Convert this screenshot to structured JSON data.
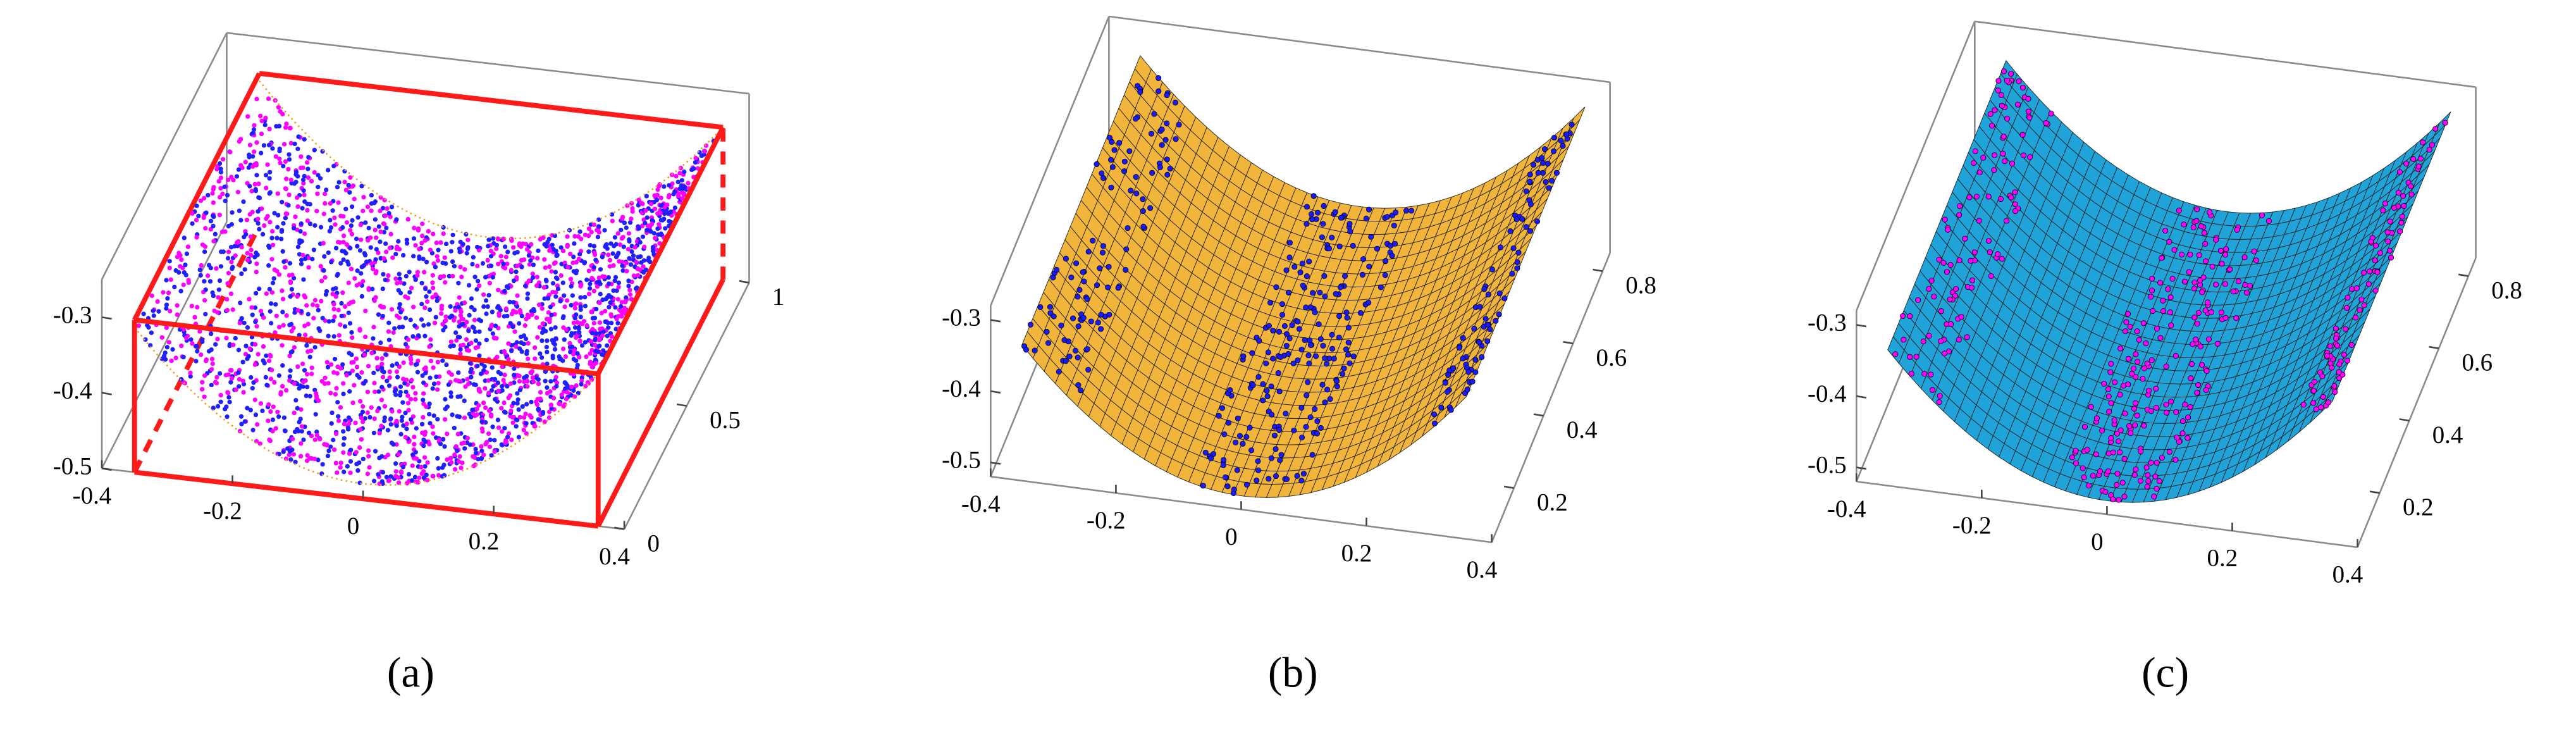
{
  "chart_data": [
    {
      "type": "surface3d",
      "caption": "(a)",
      "xlim": [
        -0.4,
        0.4
      ],
      "xticks": [
        -0.4,
        -0.2,
        0,
        0.2,
        0.4
      ],
      "ylim": [
        0,
        1
      ],
      "yticks": [
        0,
        0.5,
        1
      ],
      "zlim": [
        -0.5,
        -0.25
      ],
      "zticks": [
        -0.5,
        -0.4,
        -0.3
      ],
      "point_colors": [
        "#2020ff",
        "#ff00ff"
      ],
      "box_color": "#ff1a1a",
      "edge_color": "#f0a020"
    },
    {
      "type": "surface3d",
      "caption": "(b)",
      "xlim": [
        -0.4,
        0.4
      ],
      "xticks": [
        -0.4,
        -0.2,
        0,
        0.2,
        0.4
      ],
      "ylim": [
        0.05,
        0.85
      ],
      "yticks": [
        0.2,
        0.4,
        0.6,
        0.8
      ],
      "zlim": [
        -0.52,
        -0.28
      ],
      "zticks": [
        -0.5,
        -0.4,
        -0.3
      ],
      "point_colors": [
        "#1a1aff"
      ],
      "surface_color": "#f2b53c"
    },
    {
      "type": "surface3d",
      "caption": "(c)",
      "xlim": [
        -0.4,
        0.4
      ],
      "xticks": [
        -0.4,
        -0.2,
        0,
        0.2,
        0.4
      ],
      "ylim": [
        0.05,
        0.85
      ],
      "yticks": [
        0.2,
        0.4,
        0.6,
        0.8
      ],
      "zlim": [
        -0.52,
        -0.28
      ],
      "zticks": [
        -0.5,
        -0.4,
        -0.3
      ],
      "point_colors": [
        "#ff00ff"
      ],
      "surface_color": "#1fa3d8"
    }
  ]
}
